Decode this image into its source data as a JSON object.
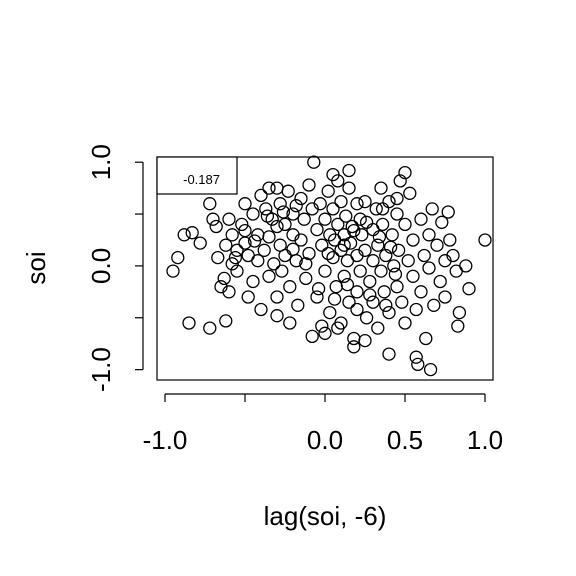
{
  "chart_data": {
    "type": "scatter",
    "title": "",
    "xlabel": "lag(soi, -6)",
    "ylabel": "soi",
    "xlim": [
      -1.05,
      1.05
    ],
    "ylim": [
      -1.1,
      1.05
    ],
    "x_ticks": [
      -1.0,
      -0.5,
      0.0,
      0.5,
      1.0
    ],
    "x_tick_labels": [
      "-1.0",
      "",
      "0.0",
      "0.5",
      "1.0"
    ],
    "y_ticks": [
      -1.0,
      -0.5,
      0.0,
      0.5,
      1.0
    ],
    "y_tick_labels": [
      "-1.0",
      "",
      "0.0",
      "",
      "1.0"
    ],
    "grid": false,
    "legend": {
      "position": "top-left",
      "text": "-0.187"
    },
    "marker": "open-circle",
    "series": [
      {
        "points": [
          [
            -0.95,
            -0.05
          ],
          [
            -0.92,
            0.08
          ],
          [
            -0.88,
            0.3
          ],
          [
            -0.83,
            0.32
          ],
          [
            -0.85,
            -0.55
          ],
          [
            -0.78,
            0.22
          ],
          [
            -0.72,
            0.6
          ],
          [
            -0.72,
            -0.6
          ],
          [
            -0.7,
            0.45
          ],
          [
            -0.68,
            0.38
          ],
          [
            -0.67,
            0.08
          ],
          [
            -0.65,
            -0.2
          ],
          [
            -0.63,
            -0.12
          ],
          [
            -0.62,
            -0.53
          ],
          [
            -0.6,
            -0.25
          ],
          [
            -0.6,
            0.45
          ],
          [
            -0.58,
            0.3
          ],
          [
            -0.55,
            0.15
          ],
          [
            -0.55,
            -0.05
          ],
          [
            -0.52,
            0.4
          ],
          [
            -0.5,
            0.6
          ],
          [
            -0.5,
            0.22
          ],
          [
            -0.48,
            0.1
          ],
          [
            -0.48,
            -0.3
          ],
          [
            -0.45,
            0.5
          ],
          [
            -0.45,
            -0.15
          ],
          [
            -0.42,
            0.3
          ],
          [
            -0.42,
            0.05
          ],
          [
            -0.4,
            0.68
          ],
          [
            -0.4,
            -0.42
          ],
          [
            -0.38,
            0.15
          ],
          [
            -0.37,
            0.55
          ],
          [
            -0.35,
            0.75
          ],
          [
            -0.35,
            0.28
          ],
          [
            -0.35,
            -0.1
          ],
          [
            -0.33,
            0.45
          ],
          [
            -0.32,
            0.02
          ],
          [
            -0.3,
            0.75
          ],
          [
            -0.3,
            -0.3
          ],
          [
            -0.3,
            -0.48
          ],
          [
            -0.28,
            0.6
          ],
          [
            -0.28,
            0.2
          ],
          [
            -0.27,
            -0.05
          ],
          [
            -0.25,
            0.4
          ],
          [
            -0.25,
            0.1
          ],
          [
            -0.23,
            0.72
          ],
          [
            -0.22,
            -0.2
          ],
          [
            -0.22,
            -0.55
          ],
          [
            -0.2,
            0.5
          ],
          [
            -0.2,
            0.3
          ],
          [
            -0.18,
            0.05
          ],
          [
            -0.17,
            -0.38
          ],
          [
            -0.15,
            0.65
          ],
          [
            -0.15,
            0.25
          ],
          [
            -0.13,
            0.45
          ],
          [
            -0.12,
            -0.12
          ],
          [
            -0.1,
            0.78
          ],
          [
            -0.1,
            0.12
          ],
          [
            -0.08,
            0.55
          ],
          [
            -0.08,
            -0.68
          ],
          [
            -0.07,
            1.0
          ],
          [
            -0.05,
            0.35
          ],
          [
            -0.05,
            -0.3
          ],
          [
            -0.03,
            0.6
          ],
          [
            -0.02,
            0.2
          ],
          [
            0.0,
            0.45
          ],
          [
            0.0,
            -0.05
          ],
          [
            0.0,
            -0.65
          ],
          [
            0.02,
            0.72
          ],
          [
            0.03,
            0.3
          ],
          [
            0.03,
            -0.45
          ],
          [
            0.05,
            0.88
          ],
          [
            0.05,
            0.08
          ],
          [
            0.05,
            0.55
          ],
          [
            0.07,
            -0.2
          ],
          [
            0.08,
            0.4
          ],
          [
            0.08,
            0.82
          ],
          [
            0.1,
            0.15
          ],
          [
            0.1,
            -0.55
          ],
          [
            0.1,
            0.62
          ],
          [
            0.12,
            0.3
          ],
          [
            0.12,
            -0.1
          ],
          [
            0.13,
            0.48
          ],
          [
            0.14,
            0.05
          ],
          [
            0.15,
            0.75
          ],
          [
            0.15,
            -0.35
          ],
          [
            0.16,
            0.22
          ],
          [
            0.17,
            0.38
          ],
          [
            0.18,
            -0.7
          ],
          [
            0.18,
            -0.78
          ],
          [
            0.2,
            0.6
          ],
          [
            0.2,
            0.1
          ],
          [
            0.2,
            -0.25
          ],
          [
            0.22,
            0.45
          ],
          [
            0.22,
            -0.05
          ],
          [
            0.23,
            0.3
          ],
          [
            0.25,
            0.62
          ],
          [
            0.25,
            0.15
          ],
          [
            0.26,
            -0.5
          ],
          [
            0.28,
            -0.15
          ],
          [
            0.3,
            0.35
          ],
          [
            0.3,
            0.05
          ],
          [
            0.3,
            -0.35
          ],
          [
            0.32,
            0.55
          ],
          [
            0.33,
            0.2
          ],
          [
            0.33,
            -0.6
          ],
          [
            0.35,
            0.75
          ],
          [
            0.35,
            -0.05
          ],
          [
            0.36,
            0.4
          ],
          [
            0.37,
            -0.25
          ],
          [
            0.38,
            0.1
          ],
          [
            0.4,
            0.62
          ],
          [
            0.4,
            -0.85
          ],
          [
            0.4,
            -0.45
          ],
          [
            0.42,
            0.3
          ],
          [
            0.43,
            0.0
          ],
          [
            0.45,
            0.5
          ],
          [
            0.45,
            -0.2
          ],
          [
            0.46,
            0.15
          ],
          [
            0.47,
            0.82
          ],
          [
            0.48,
            -0.35
          ],
          [
            0.5,
            0.9
          ],
          [
            0.5,
            0.4
          ],
          [
            0.5,
            -0.55
          ],
          [
            0.52,
            0.05
          ],
          [
            0.53,
            0.7
          ],
          [
            0.55,
            -0.1
          ],
          [
            0.55,
            0.25
          ],
          [
            0.57,
            -0.42
          ],
          [
            0.58,
            -0.95
          ],
          [
            0.6,
            0.45
          ],
          [
            0.6,
            -0.25
          ],
          [
            0.62,
            0.1
          ],
          [
            0.63,
            -0.7
          ],
          [
            0.65,
            0.3
          ],
          [
            0.65,
            -0.02
          ],
          [
            0.67,
            0.55
          ],
          [
            0.68,
            -0.38
          ],
          [
            0.7,
            0.2
          ],
          [
            0.72,
            -0.15
          ],
          [
            0.73,
            0.42
          ],
          [
            0.75,
            0.05
          ],
          [
            0.75,
            -0.3
          ],
          [
            0.77,
            0.52
          ],
          [
            0.78,
            0.25
          ],
          [
            0.8,
            0.1
          ],
          [
            0.82,
            -0.05
          ],
          [
            0.83,
            -0.58
          ],
          [
            0.84,
            -0.45
          ],
          [
            0.88,
            0.0
          ],
          [
            0.9,
            -0.22
          ],
          [
            1.0,
            0.25
          ],
          [
            0.66,
            -1.0
          ],
          [
            0.57,
            -0.88
          ],
          [
            0.08,
            -0.6
          ],
          [
            0.25,
            -0.72
          ],
          [
            -0.02,
            -0.58
          ],
          [
            0.15,
            0.92
          ],
          [
            0.36,
            0.55
          ],
          [
            0.45,
            0.65
          ],
          [
            -0.18,
            0.58
          ],
          [
            -0.26,
            0.52
          ],
          [
            0.02,
            0.12
          ],
          [
            0.06,
            0.25
          ],
          [
            0.12,
            0.2
          ],
          [
            0.18,
            0.34
          ],
          [
            0.26,
            0.42
          ],
          [
            0.34,
            0.28
          ],
          [
            0.41,
            0.18
          ],
          [
            0.44,
            -0.08
          ],
          [
            0.38,
            -0.38
          ],
          [
            0.28,
            -0.28
          ],
          [
            0.2,
            -0.42
          ],
          [
            0.14,
            -0.18
          ],
          [
            0.06,
            -0.32
          ],
          [
            -0.04,
            -0.22
          ],
          [
            -0.12,
            0.02
          ],
          [
            -0.2,
            0.16
          ],
          [
            -0.3,
            0.38
          ],
          [
            -0.36,
            0.48
          ],
          [
            -0.44,
            0.24
          ],
          [
            -0.5,
            0.34
          ],
          [
            -0.56,
            0.08
          ],
          [
            -0.62,
            0.2
          ],
          [
            -0.58,
            0.02
          ]
        ]
      }
    ]
  }
}
